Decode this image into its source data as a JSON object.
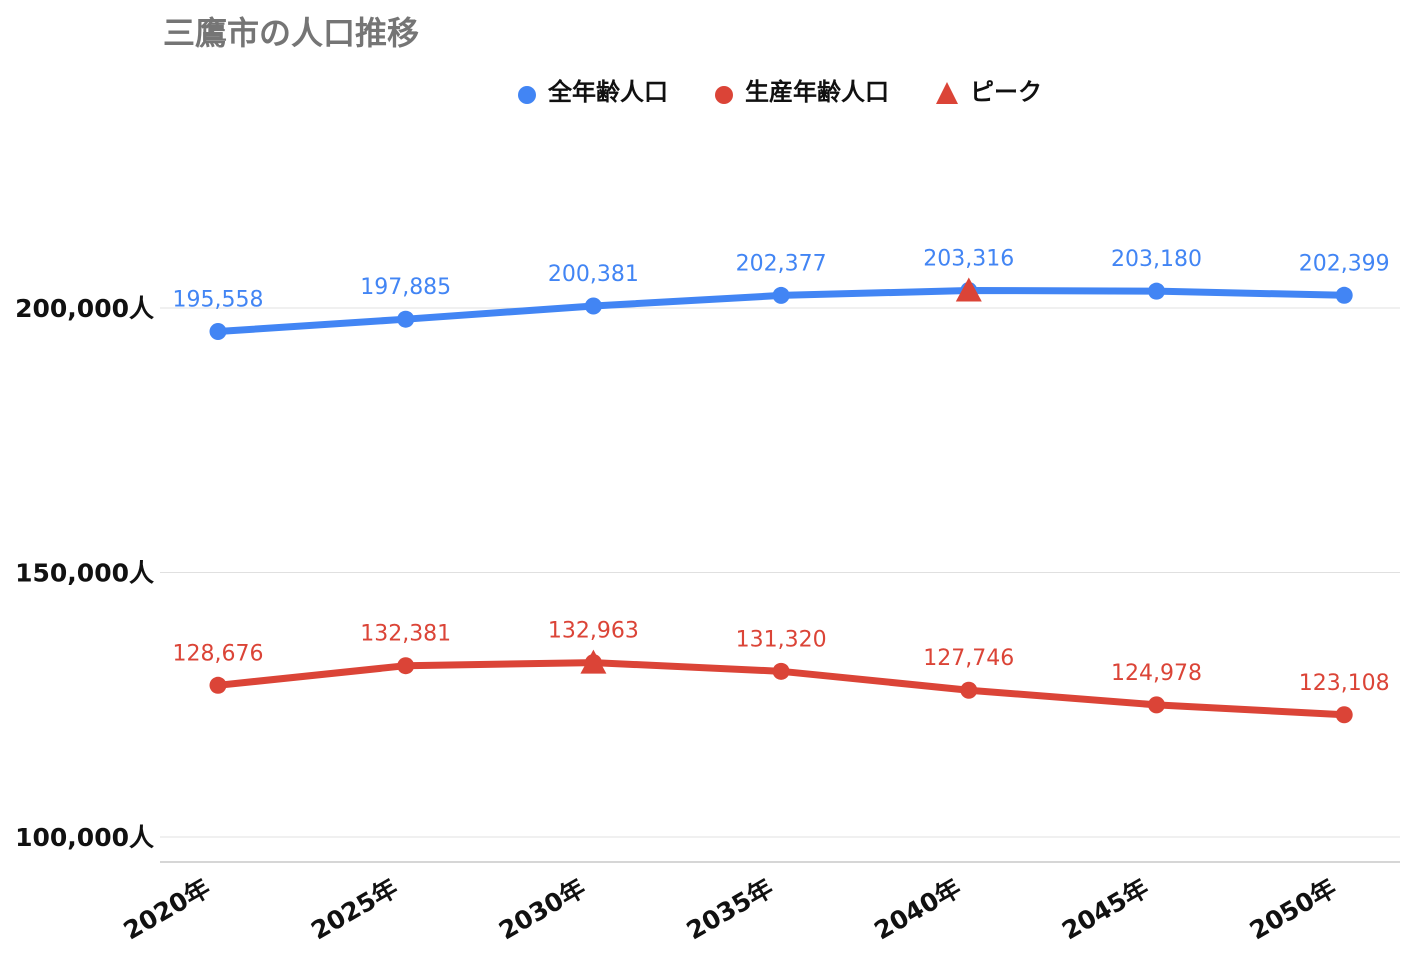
{
  "chart_data": {
    "type": "line",
    "title": "三鷹市の人口推移",
    "categories": [
      "2020年",
      "2025年",
      "2030年",
      "2035年",
      "2040年",
      "2045年",
      "2050年"
    ],
    "series": [
      {
        "name": "全年齢人口",
        "color": "#4285f4",
        "values": [
          195558,
          197885,
          200381,
          202377,
          203316,
          203180,
          202399
        ],
        "labels": [
          "195,558",
          "197,885",
          "200,381",
          "202,377",
          "203,316",
          "203,180",
          "202,399"
        ],
        "peak_index": 4
      },
      {
        "name": "生産年齢人口",
        "color": "#db4437",
        "values": [
          128676,
          132381,
          132963,
          131320,
          127746,
          124978,
          123108
        ],
        "labels": [
          "128,676",
          "132,381",
          "132,963",
          "131,320",
          "127,746",
          "124,978",
          "123,108"
        ],
        "peak_index": 2
      }
    ],
    "peak_legend": {
      "name": "ピーク",
      "color": "#db4437"
    },
    "yticks": [
      {
        "value": 100000,
        "label": "100,000人"
      },
      {
        "value": 150000,
        "label": "150,000人"
      },
      {
        "value": 200000,
        "label": "200,000人"
      }
    ],
    "ylim": [
      95000,
      219000
    ],
    "grid": true,
    "legend_position": "top-center"
  }
}
